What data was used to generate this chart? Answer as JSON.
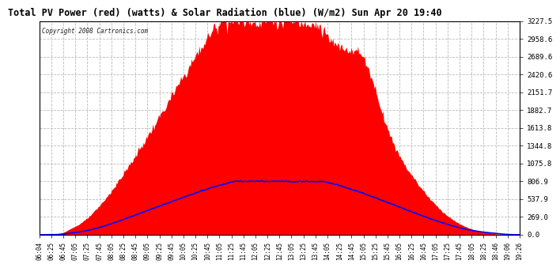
{
  "title": "Total PV Power (red) (watts) & Solar Radiation (blue) (W/m2) Sun Apr 20 19:40",
  "copyright_text": "Copyright 2008 Cartronics.com",
  "yticks": [
    0.0,
    269.0,
    537.9,
    806.9,
    1075.8,
    1344.8,
    1613.8,
    1882.7,
    2151.7,
    2420.6,
    2689.6,
    2958.6,
    3227.5
  ],
  "ymax": 3227.5,
  "ymin": 0.0,
  "bg_color": "#ffffff",
  "plot_bg_color": "#ffffff",
  "grid_color": "#cccccc",
  "fill_color": "#ff0000",
  "line_color": "#0000ff",
  "border_color": "#000000",
  "title_color": "#000000",
  "xtick_labels": [
    "06:04",
    "06:25",
    "06:45",
    "07:05",
    "07:25",
    "07:45",
    "08:05",
    "08:25",
    "08:45",
    "09:05",
    "09:25",
    "09:45",
    "10:05",
    "10:25",
    "10:45",
    "11:05",
    "11:25",
    "11:45",
    "12:05",
    "12:25",
    "12:45",
    "13:05",
    "13:25",
    "13:45",
    "14:05",
    "14:25",
    "14:45",
    "15:05",
    "15:25",
    "15:45",
    "16:05",
    "16:25",
    "16:45",
    "17:05",
    "17:25",
    "17:45",
    "18:05",
    "18:25",
    "18:46",
    "19:06",
    "19:26"
  ]
}
